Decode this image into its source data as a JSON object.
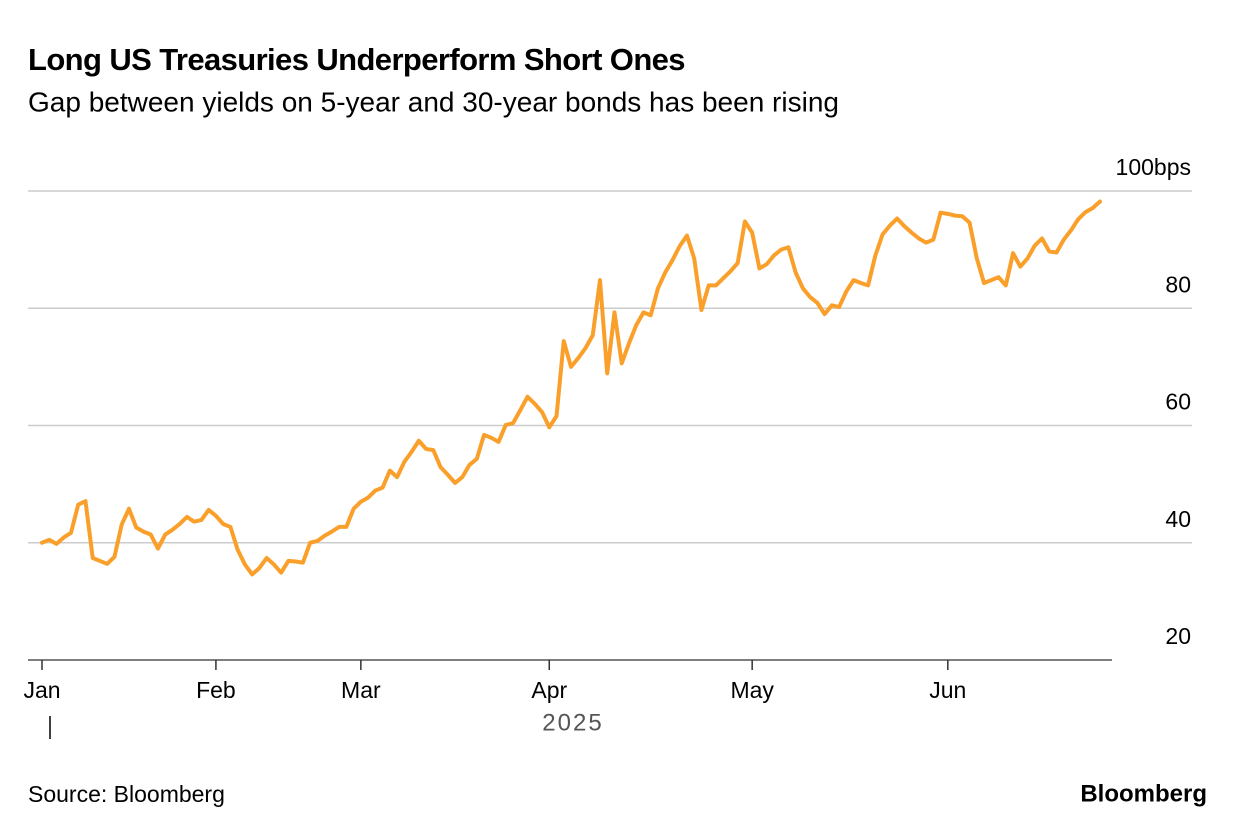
{
  "chart_data": {
    "type": "line",
    "title": "Long US Treasuries Underperform Short Ones",
    "subtitle": "Gap between yields on 5-year and 30-year bonds has been rising",
    "xlabel": "2025",
    "source": "Source: Bloomberg",
    "brand": "Bloomberg",
    "color": "#f99f2a",
    "grid": true,
    "categories": [
      "Jan",
      null,
      null,
      null,
      null,
      null,
      null,
      null,
      null,
      null,
      null,
      null,
      null,
      null,
      null,
      null,
      null,
      null,
      null,
      null,
      null,
      null,
      null,
      null,
      "Feb",
      null,
      null,
      null,
      null,
      null,
      null,
      null,
      null,
      null,
      null,
      null,
      null,
      null,
      null,
      null,
      null,
      null,
      null,
      null,
      "Mar",
      null,
      null,
      null,
      null,
      null,
      null,
      null,
      null,
      null,
      null,
      null,
      null,
      null,
      null,
      null,
      null,
      null,
      null,
      null,
      null,
      null,
      null,
      null,
      null,
      null,
      "Apr",
      null,
      null,
      null,
      null,
      null,
      null,
      null,
      null,
      null,
      null,
      null,
      null,
      null,
      null,
      null,
      null,
      null,
      null,
      null,
      null,
      null,
      null,
      null,
      null,
      null,
      null,
      null,
      "May",
      null,
      null,
      null,
      null,
      null,
      null,
      null,
      null,
      null,
      null,
      null,
      null,
      null,
      null,
      null,
      null,
      null,
      null,
      null,
      null,
      null,
      null,
      null,
      null,
      null,
      null,
      "Jun",
      null,
      null,
      null,
      null,
      null,
      null,
      null,
      null,
      null,
      null,
      null,
      null,
      null,
      null,
      null,
      null,
      null,
      null,
      null,
      null,
      null
    ],
    "values": [
      40.0,
      40.5,
      39.8,
      40.9,
      41.7,
      46.5,
      47.1,
      37.4,
      36.9,
      36.4,
      37.6,
      43.1,
      45.8,
      42.6,
      41.9,
      41.4,
      39.0,
      41.4,
      42.2,
      43.2,
      44.4,
      43.6,
      43.9,
      45.6,
      44.6,
      43.2,
      42.7,
      38.8,
      36.3,
      34.6,
      35.7,
      37.4,
      36.3,
      34.9,
      36.9,
      36.8,
      36.6,
      40.0,
      40.3,
      41.2,
      41.9,
      42.7,
      42.7,
      45.8,
      47.0,
      47.7,
      48.9,
      49.4,
      52.3,
      51.2,
      53.8,
      55.5,
      57.4,
      56.0,
      55.8,
      52.9,
      51.6,
      50.2,
      51.2,
      53.3,
      54.3,
      58.4,
      57.9,
      57.2,
      60.1,
      60.4,
      62.6,
      64.9,
      63.7,
      62.3,
      59.7,
      61.6,
      74.4,
      70.0,
      71.5,
      73.2,
      75.4,
      84.8,
      68.9,
      79.3,
      70.6,
      74.0,
      77.1,
      79.3,
      78.8,
      83.4,
      86.1,
      88.2,
      90.6,
      92.4,
      88.5,
      79.7,
      83.9,
      83.9,
      85.1,
      86.3,
      87.7,
      94.8,
      92.9,
      86.8,
      87.5,
      89.0,
      90.0,
      90.4,
      86.1,
      83.4,
      81.9,
      80.9,
      79.0,
      80.5,
      80.2,
      82.9,
      84.8,
      84.3,
      83.9,
      89.0,
      92.6,
      94.1,
      95.3,
      94.0,
      92.9,
      91.9,
      91.2,
      91.7,
      96.3,
      96.1,
      95.8,
      95.7,
      94.6,
      88.5,
      84.3,
      84.8,
      85.3,
      83.9,
      89.4,
      87.1,
      88.5,
      90.7,
      91.9,
      89.7,
      89.5,
      91.7,
      93.3,
      95.2,
      96.4,
      97.1,
      98.2
    ],
    "ylim": [
      20,
      100
    ],
    "yticks": [
      20,
      40,
      60,
      80,
      {
        "value": 100,
        "label": "100bps"
      }
    ]
  }
}
